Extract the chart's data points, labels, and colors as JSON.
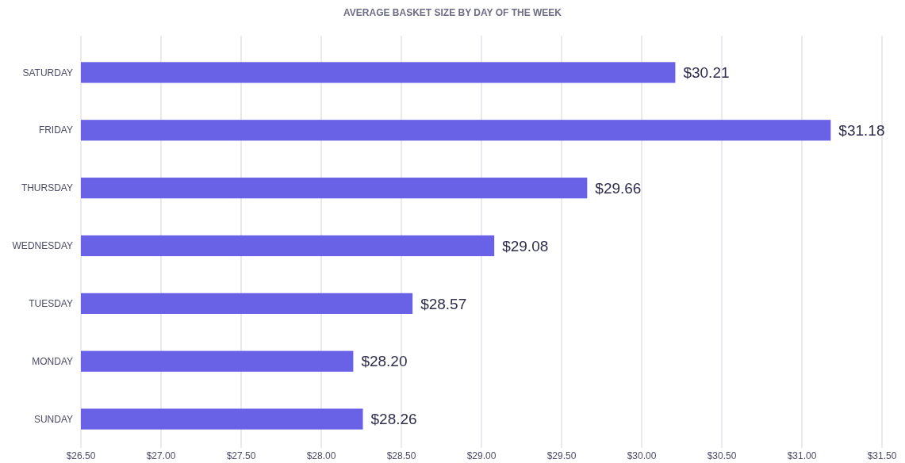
{
  "chart_data": {
    "type": "bar",
    "orientation": "horizontal",
    "title": "AVERAGE BASKET SIZE BY DAY OF THE WEEK",
    "categories": [
      "SATURDAY",
      "FRIDAY",
      "THURSDAY",
      "WEDNESDAY",
      "TUESDAY",
      "MONDAY",
      "SUNDAY"
    ],
    "values": [
      30.21,
      31.18,
      29.66,
      29.08,
      28.57,
      28.2,
      28.26
    ],
    "value_labels": [
      "$30.21",
      "$31.18",
      "$29.66",
      "$29.08",
      "$28.57",
      "$28.20",
      "$28.26"
    ],
    "color": "#6a62e6",
    "xlim": [
      26.5,
      31.5
    ],
    "xticks": [
      {
        "value": 26.5,
        "label": "$26.50"
      },
      {
        "value": 27,
        "label": "$27.00"
      },
      {
        "value": 27.5,
        "label": "$27.50"
      },
      {
        "value": 28,
        "label": "$28.00"
      },
      {
        "value": 28.5,
        "label": "$28.50"
      },
      {
        "value": 29,
        "label": "$29.00"
      },
      {
        "value": 29.5,
        "label": "$29.50"
      },
      {
        "value": 30,
        "label": "$30.00"
      },
      {
        "value": 30.5,
        "label": "$30.50"
      },
      {
        "value": 31,
        "label": "$31.00"
      },
      {
        "value": 31.5,
        "label": "$31.50"
      }
    ],
    "grid": "x"
  }
}
